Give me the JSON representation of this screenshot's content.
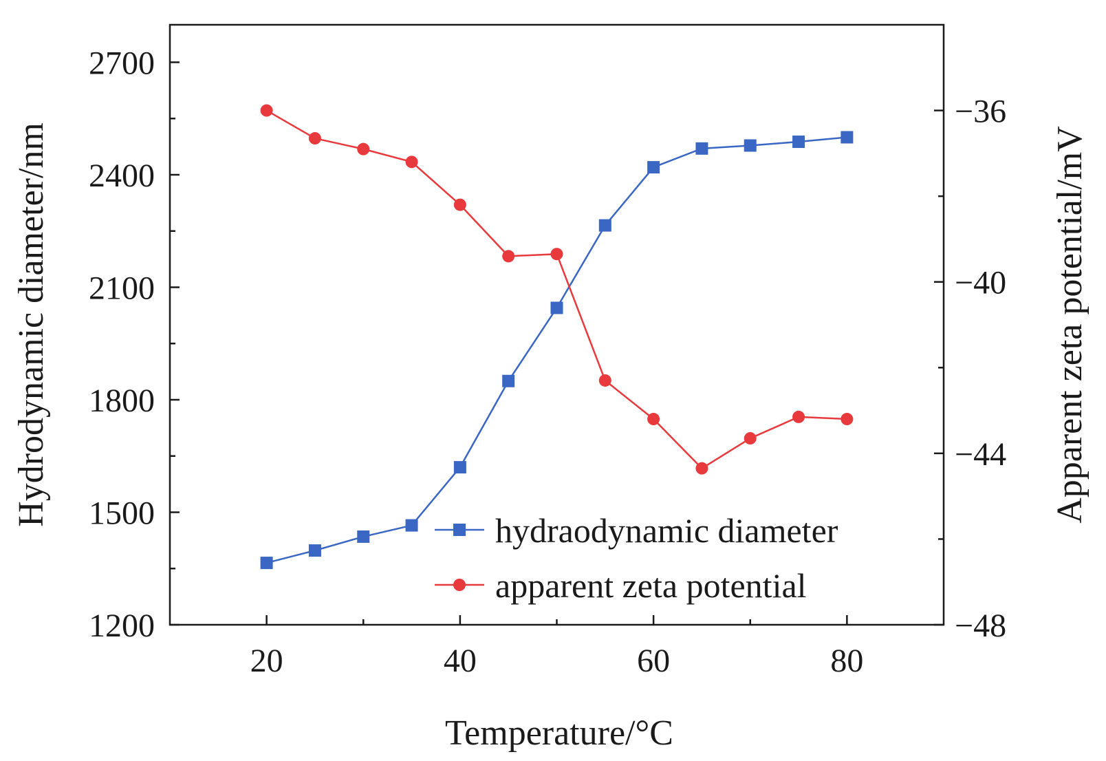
{
  "chart_data": {
    "type": "line",
    "xlabel": "Temperature/°C",
    "ylabel_left": "Hydrodynamic diameter/nm",
    "ylabel_right": "Apparent zeta potential/mV",
    "xlim": [
      10,
      90
    ],
    "ylim_left": [
      1200,
      2800
    ],
    "ylim_right": [
      -48,
      -34
    ],
    "x_ticks": [
      20,
      40,
      60,
      80
    ],
    "y_left_ticks": [
      1200,
      1500,
      1800,
      2100,
      2400,
      2700
    ],
    "y_right_ticks": [
      -48,
      -44,
      -40,
      -36
    ],
    "x": [
      20,
      25,
      30,
      35,
      40,
      45,
      50,
      55,
      60,
      65,
      70,
      75,
      80
    ],
    "series": [
      {
        "name": "hydraodynamic diameter",
        "axis": "left",
        "color": "#3a66c4",
        "marker": "square",
        "values": [
          1365,
          1398,
          1435,
          1465,
          1620,
          1850,
          2045,
          2265,
          2420,
          2470,
          2478,
          2488,
          2500
        ]
      },
      {
        "name": "apparent zeta potential",
        "axis": "right",
        "color": "#e8393c",
        "marker": "circle",
        "values": [
          -36.0,
          -36.65,
          -36.9,
          -37.2,
          -38.2,
          -39.4,
          -39.35,
          -42.3,
          -43.2,
          -44.35,
          -43.65,
          -43.15,
          -43.2
        ]
      }
    ],
    "legend": {
      "location": "bottom-right",
      "entries": [
        "hydraodynamic diameter",
        "apparent zeta potential"
      ]
    }
  }
}
